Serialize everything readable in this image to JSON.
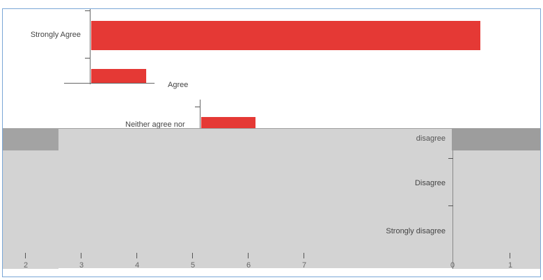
{
  "chart_data": {
    "type": "bar",
    "orientation": "horizontal",
    "categories": [
      "Strongly Agree",
      "Agree",
      "Neither agree nor disagree",
      "Disagree",
      "Strongly disagree"
    ],
    "category_labels_shown": {
      "strongly_agree": "Strongly Agree",
      "agree": "Agree",
      "neither": "Neither agree nor",
      "neither_suffix": "disagree",
      "disagree": "Disagree",
      "strongly_disagree": "Strongly disagree"
    },
    "bar_color": "#e53935",
    "x_ticks_lower": [
      "2",
      "3",
      "4",
      "5",
      "6",
      "7"
    ],
    "x_ticks_right": [
      "0",
      "1"
    ]
  },
  "colors": {
    "frame_border": "#7aa6d6",
    "overlay_band": "#9d9d9d",
    "overlay_panel": "#d3d3d3"
  }
}
